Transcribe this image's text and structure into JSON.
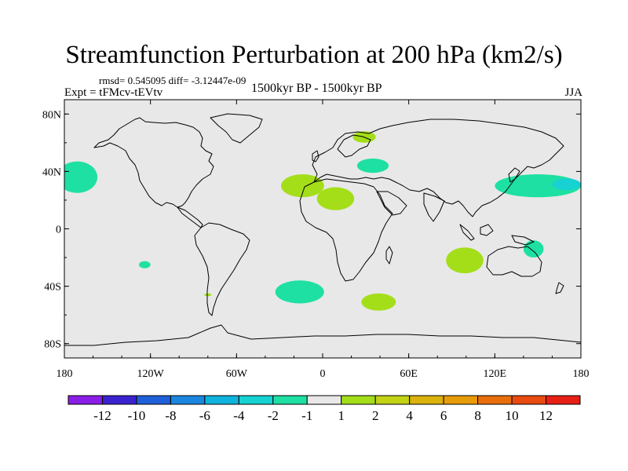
{
  "header": {
    "title": "Streamfunction Perturbation at 200 hPa (km2/s)",
    "stats": "rmsd= 0.545095 diff= -3.12447e-09",
    "experiment": "Expt = tFMcv-tEVtv",
    "period": "1500kyr BP - 1500kyr BP",
    "season": "JJA"
  },
  "chart_data": {
    "type": "heatmap",
    "title": "Streamfunction Perturbation at 200 hPa (km2/s)",
    "xlabel": "",
    "ylabel": "",
    "xlim": [
      -180,
      180
    ],
    "ylim": [
      -90,
      90
    ],
    "x_ticks": [
      {
        "value": -180,
        "label": "180"
      },
      {
        "value": -120,
        "label": "120W"
      },
      {
        "value": -60,
        "label": "60W"
      },
      {
        "value": 0,
        "label": "0"
      },
      {
        "value": 60,
        "label": "60E"
      },
      {
        "value": 120,
        "label": "120E"
      },
      {
        "value": 180,
        "label": "180"
      }
    ],
    "y_ticks": [
      {
        "value": 80,
        "label": "80N"
      },
      {
        "value": 40,
        "label": "40N"
      },
      {
        "value": 0,
        "label": "0"
      },
      {
        "value": -40,
        "label": "40S"
      },
      {
        "value": -80,
        "label": "80S"
      }
    ],
    "background_color": "#e8e8e8",
    "colorbar": {
      "colors": [
        "#8a1ee6",
        "#3a22cf",
        "#1f5fd8",
        "#1a86e0",
        "#0fb3dd",
        "#16d2d2",
        "#1ee0a2",
        "#e8e8e8",
        "#a4de19",
        "#c2d215",
        "#dcb20c",
        "#e89b08",
        "#e86e0c",
        "#e84a10",
        "#e81f15"
      ],
      "labels": [
        "-12",
        "-10",
        "-8",
        "-6",
        "-4",
        "-2",
        "-1",
        "1",
        "2",
        "4",
        "6",
        "8",
        "10",
        "12"
      ]
    },
    "anomalies": [
      {
        "name": "north-pacific-east",
        "lon": -171,
        "lat": 36,
        "rlon": 14,
        "rlat": 11,
        "color": "#1ee0a2"
      },
      {
        "name": "north-atlantic-subtropical",
        "lon": -14,
        "lat": 30,
        "rlon": 15,
        "rlat": 8,
        "color": "#a4de19"
      },
      {
        "name": "north-africa",
        "lon": 9,
        "lat": 21,
        "rlon": 13,
        "rlat": 8,
        "color": "#a4de19"
      },
      {
        "name": "scandinavia",
        "lon": 29,
        "lat": 64,
        "rlon": 8,
        "rlat": 4,
        "color": "#a4de19"
      },
      {
        "name": "mediterranean",
        "lon": 35,
        "lat": 44,
        "rlon": 11,
        "rlat": 5,
        "color": "#1ee0a2"
      },
      {
        "name": "northwest-pacific",
        "lon": 150,
        "lat": 30,
        "rlon": 30,
        "rlat": 8,
        "color": "#1ee0a2"
      },
      {
        "name": "northwest-pacific-core",
        "lon": 170,
        "lat": 31,
        "rlon": 10,
        "rlat": 4,
        "color": "#16d2d2"
      },
      {
        "name": "south-indian-ocean",
        "lon": 99,
        "lat": -22,
        "rlon": 13,
        "rlat": 9,
        "color": "#a4de19"
      },
      {
        "name": "coral-sea",
        "lon": 147,
        "lat": -14,
        "rlon": 7,
        "rlat": 6,
        "color": "#1ee0a2"
      },
      {
        "name": "south-pacific-small",
        "lon": -124,
        "lat": -25,
        "rlon": 4,
        "rlat": 2.5,
        "color": "#1ee0a2"
      },
      {
        "name": "south-atlantic",
        "lon": -16,
        "lat": -44,
        "rlon": 17,
        "rlat": 8,
        "color": "#1ee0a2"
      },
      {
        "name": "south-indian-ocean-west",
        "lon": 39,
        "lat": -51,
        "rlon": 12,
        "rlat": 6,
        "color": "#a4de19"
      },
      {
        "name": "south-pacific-dot",
        "lon": -80,
        "lat": -46,
        "rlon": 2.5,
        "rlat": 1,
        "color": "#a4de19"
      }
    ]
  }
}
